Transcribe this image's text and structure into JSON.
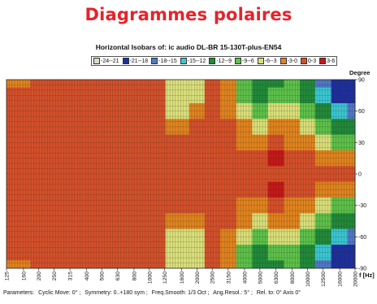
{
  "page": {
    "heading": "Diagrammes polaires"
  },
  "chart_data": {
    "type": "heatmap",
    "title": "Horizontal Isobars of:   ic audio  DL-BR 15-130T-plus-EN54",
    "xlabel": "f [Hz]",
    "ylabel": "Degree",
    "x_scale": "log",
    "xlim": [
      125,
      20000
    ],
    "ylim": [
      -90,
      90
    ],
    "x_ticks": [
      "125",
      "160",
      "200",
      "250",
      "315",
      "400",
      "500",
      "630",
      "800",
      "1000",
      "1250",
      "1600",
      "2000",
      "2500",
      "3150",
      "4000",
      "5000",
      "6300",
      "8000",
      "10000",
      "12500",
      "16000",
      "20000"
    ],
    "y_ticks": [
      "90",
      "60",
      "30",
      "0",
      "-30",
      "-60",
      "-90"
    ],
    "legend": {
      "placement": "top",
      "bins": [
        {
          "label": "-24--21",
          "color": "#d8dcc6"
        },
        {
          "label": "-21--18",
          "color": "#1c2f9e"
        },
        {
          "label": "-18--15",
          "color": "#4f78c8"
        },
        {
          "label": "-15--12",
          "color": "#38c8d4"
        },
        {
          "label": "-12--9",
          "color": "#1f8a3a"
        },
        {
          "label": "-9--6",
          "color": "#5cc24a"
        },
        {
          "label": "-6--3",
          "color": "#d9e07a"
        },
        {
          "label": "-3-0",
          "color": "#e0841f"
        },
        {
          "label": "0-3",
          "color": "#d4502a"
        },
        {
          "label": "3-6",
          "color": "#c41818"
        }
      ]
    },
    "grid": true,
    "frequencies_hz": [
      125,
      250,
      500,
      1000,
      1600,
      2000,
      2500,
      3150,
      4000,
      5000,
      6300,
      8000,
      10000,
      12500,
      16000,
      20000
    ],
    "angles_deg": [
      90,
      75,
      60,
      45,
      30,
      15,
      0,
      -15,
      -30,
      -45,
      -60,
      -75,
      -90
    ],
    "level_bins": [
      [
        "-3-0",
        "0-3",
        "0-3",
        "0-3",
        "-6--3",
        "-6--3",
        "0-3",
        "-3-0",
        "-9--6",
        "-12--9",
        "-12--9",
        "-9--6",
        "-12--9",
        "-18--15",
        "-21--18",
        "-21--18"
      ],
      [
        "0-3",
        "0-3",
        "0-3",
        "0-3",
        "-6--3",
        "-6--3",
        "0-3",
        "-3-0",
        "-9--6",
        "-12--9",
        "-9--6",
        "-9--6",
        "-12--9",
        "-15--12",
        "-21--18",
        "-21--18"
      ],
      [
        "0-3",
        "0-3",
        "0-3",
        "0-3",
        "-6--3",
        "-3-0",
        "0-3",
        "-3-0",
        "-6--3",
        "-9--6",
        "-6--3",
        "-6--3",
        "-9--6",
        "-12--9",
        "-15--12",
        "-18--15"
      ],
      [
        "0-3",
        "0-3",
        "0-3",
        "0-3",
        "-3-0",
        "0-3",
        "0-3",
        "0-3",
        "-3-0",
        "-6--3",
        "-3-0",
        "-3-0",
        "-6--3",
        "-9--6",
        "-12--9",
        "-12--9"
      ],
      [
        "0-3",
        "0-3",
        "0-3",
        "0-3",
        "0-3",
        "0-3",
        "0-3",
        "0-3",
        "-3-0",
        "-3-0",
        "0-3",
        "-3-0",
        "-3-0",
        "-6--3",
        "-9--6",
        "-9--6"
      ],
      [
        "0-3",
        "0-3",
        "0-3",
        "0-3",
        "0-3",
        "0-3",
        "0-3",
        "0-3",
        "0-3",
        "0-3",
        "3-6",
        "0-3",
        "0-3",
        "-3-0",
        "-3-0",
        "-3-0"
      ],
      [
        "0-3",
        "0-3",
        "0-3",
        "0-3",
        "0-3",
        "0-3",
        "0-3",
        "0-3",
        "0-3",
        "0-3",
        "0-3",
        "0-3",
        "0-3",
        "0-3",
        "0-3",
        "0-3"
      ],
      [
        "0-3",
        "0-3",
        "0-3",
        "0-3",
        "0-3",
        "0-3",
        "0-3",
        "0-3",
        "0-3",
        "0-3",
        "3-6",
        "0-3",
        "0-3",
        "-3-0",
        "-3-0",
        "-3-0"
      ],
      [
        "0-3",
        "0-3",
        "0-3",
        "0-3",
        "0-3",
        "0-3",
        "0-3",
        "0-3",
        "-3-0",
        "-3-0",
        "0-3",
        "-3-0",
        "-3-0",
        "-6--3",
        "-9--6",
        "-9--6"
      ],
      [
        "0-3",
        "0-3",
        "0-3",
        "0-3",
        "-3-0",
        "-3-0",
        "0-3",
        "0-3",
        "-3-0",
        "-6--3",
        "-3-0",
        "-3-0",
        "-6--3",
        "-9--6",
        "-12--9",
        "-12--9"
      ],
      [
        "0-3",
        "0-3",
        "0-3",
        "0-3",
        "-6--3",
        "-6--3",
        "0-3",
        "-3-0",
        "-6--3",
        "-9--6",
        "-6--3",
        "-6--3",
        "-9--6",
        "-12--9",
        "-15--12",
        "-18--15"
      ],
      [
        "0-3",
        "0-3",
        "0-3",
        "0-3",
        "-6--3",
        "-6--3",
        "0-3",
        "-3-0",
        "-9--6",
        "-12--9",
        "-9--6",
        "-9--6",
        "-12--9",
        "-15--12",
        "-21--18",
        "-21--18"
      ],
      [
        "-3-0",
        "0-3",
        "0-3",
        "0-3",
        "-6--3",
        "-6--3",
        "0-3",
        "-3-0",
        "-9--6",
        "-12--9",
        "-12--9",
        "-9--6",
        "-12--9",
        "-18--15",
        "-21--18",
        "-21--18"
      ]
    ]
  },
  "footer": {
    "items": [
      "Parameters:",
      "Cyclic Move:  0°   ;",
      "Symmetry: 0..+180 sym   ;",
      "Freq.Smooth: 1/3  Oct   ;",
      "Ang.Resol.:  5°   ;",
      "Rel. to: 0° Axis    0°"
    ]
  }
}
